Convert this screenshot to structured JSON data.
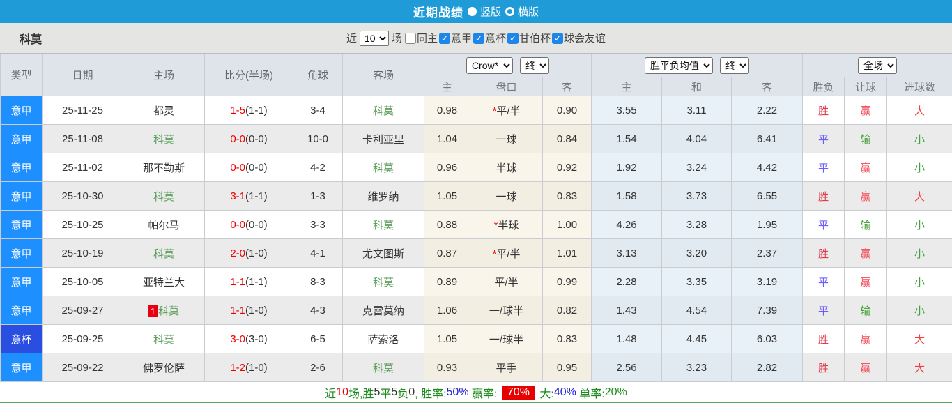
{
  "titlebar": {
    "title": "近期战绩",
    "radio_vertical_label": "竖版",
    "radio_horizontal_label": "横版",
    "selected": "竖版"
  },
  "filterbar": {
    "team": "科莫",
    "recent_label": "近",
    "recent_value": "10",
    "matches_label": "场",
    "checkboxes": [
      {
        "label": "同主",
        "checked": false
      },
      {
        "label": "意甲",
        "checked": true
      },
      {
        "label": "意杯",
        "checked": true
      },
      {
        "label": "甘伯杯",
        "checked": true
      },
      {
        "label": "球会友谊",
        "checked": true
      }
    ]
  },
  "table": {
    "left_headers": [
      "类型",
      "日期",
      "主场",
      "比分(半场)",
      "角球",
      "客场"
    ],
    "group_selects": {
      "odds_company": "Crow*",
      "odds_time": "终",
      "avg_name": "胜平负均值",
      "avg_time": "终",
      "scope": "全场"
    },
    "sub_headers": [
      "主",
      "盘口",
      "客",
      "主",
      "和",
      "客",
      "胜负",
      "让球",
      "进球数"
    ],
    "rows": [
      {
        "type": "意甲",
        "type_kind": "league",
        "date": "25-11-25",
        "home": "都灵",
        "home_badge": "",
        "home_is_team": false,
        "score_ft": "1-5",
        "score_ht": "(1-1)",
        "corners": "3-4",
        "away": "科莫",
        "away_is_team": true,
        "odds_home": "0.98",
        "handicap_star": true,
        "handicap": "平/半",
        "odds_away": "0.90",
        "avg_home": "3.55",
        "avg_draw": "3.11",
        "avg_away": "2.22",
        "wdl": "胜",
        "handicap_result": "赢",
        "goals": "大"
      },
      {
        "type": "意甲",
        "type_kind": "league",
        "date": "25-11-08",
        "home": "科莫",
        "home_badge": "",
        "home_is_team": true,
        "score_ft": "0-0",
        "score_ht": "(0-0)",
        "corners": "10-0",
        "away": "卡利亚里",
        "away_is_team": false,
        "odds_home": "1.04",
        "handicap_star": false,
        "handicap": "一球",
        "odds_away": "0.84",
        "avg_home": "1.54",
        "avg_draw": "4.04",
        "avg_away": "6.41",
        "wdl": "平",
        "handicap_result": "输",
        "goals": "小"
      },
      {
        "type": "意甲",
        "type_kind": "league",
        "date": "25-11-02",
        "home": "那不勒斯",
        "home_badge": "",
        "home_is_team": false,
        "score_ft": "0-0",
        "score_ht": "(0-0)",
        "corners": "4-2",
        "away": "科莫",
        "away_is_team": true,
        "odds_home": "0.96",
        "handicap_star": false,
        "handicap": "半球",
        "odds_away": "0.92",
        "avg_home": "1.92",
        "avg_draw": "3.24",
        "avg_away": "4.42",
        "wdl": "平",
        "handicap_result": "赢",
        "goals": "小"
      },
      {
        "type": "意甲",
        "type_kind": "league",
        "date": "25-10-30",
        "home": "科莫",
        "home_badge": "",
        "home_is_team": true,
        "score_ft": "3-1",
        "score_ht": "(1-1)",
        "corners": "1-3",
        "away": "维罗纳",
        "away_is_team": false,
        "odds_home": "1.05",
        "handicap_star": false,
        "handicap": "一球",
        "odds_away": "0.83",
        "avg_home": "1.58",
        "avg_draw": "3.73",
        "avg_away": "6.55",
        "wdl": "胜",
        "handicap_result": "赢",
        "goals": "大"
      },
      {
        "type": "意甲",
        "type_kind": "league",
        "date": "25-10-25",
        "home": "帕尔马",
        "home_badge": "",
        "home_is_team": false,
        "score_ft": "0-0",
        "score_ht": "(0-0)",
        "corners": "3-3",
        "away": "科莫",
        "away_is_team": true,
        "odds_home": "0.88",
        "handicap_star": true,
        "handicap": "半球",
        "odds_away": "1.00",
        "avg_home": "4.26",
        "avg_draw": "3.28",
        "avg_away": "1.95",
        "wdl": "平",
        "handicap_result": "输",
        "goals": "小"
      },
      {
        "type": "意甲",
        "type_kind": "league",
        "date": "25-10-19",
        "home": "科莫",
        "home_badge": "",
        "home_is_team": true,
        "score_ft": "2-0",
        "score_ht": "(1-0)",
        "corners": "4-1",
        "away": "尤文图斯",
        "away_is_team": false,
        "odds_home": "0.87",
        "handicap_star": true,
        "handicap": "平/半",
        "odds_away": "1.01",
        "avg_home": "3.13",
        "avg_draw": "3.20",
        "avg_away": "2.37",
        "wdl": "胜",
        "handicap_result": "赢",
        "goals": "小"
      },
      {
        "type": "意甲",
        "type_kind": "league",
        "date": "25-10-05",
        "home": "亚特兰大",
        "home_badge": "",
        "home_is_team": false,
        "score_ft": "1-1",
        "score_ht": "(1-1)",
        "corners": "8-3",
        "away": "科莫",
        "away_is_team": true,
        "odds_home": "0.89",
        "handicap_star": false,
        "handicap": "平/半",
        "odds_away": "0.99",
        "avg_home": "2.28",
        "avg_draw": "3.35",
        "avg_away": "3.19",
        "wdl": "平",
        "handicap_result": "赢",
        "goals": "小"
      },
      {
        "type": "意甲",
        "type_kind": "league",
        "date": "25-09-27",
        "home": "科莫",
        "home_badge": "1",
        "home_is_team": true,
        "score_ft": "1-1",
        "score_ht": "(1-0)",
        "corners": "4-3",
        "away": "克雷莫纳",
        "away_is_team": false,
        "odds_home": "1.06",
        "handicap_star": false,
        "handicap": "一/球半",
        "odds_away": "0.82",
        "avg_home": "1.43",
        "avg_draw": "4.54",
        "avg_away": "7.39",
        "wdl": "平",
        "handicap_result": "输",
        "goals": "小"
      },
      {
        "type": "意杯",
        "type_kind": "cup",
        "date": "25-09-25",
        "home": "科莫",
        "home_badge": "",
        "home_is_team": true,
        "score_ft": "3-0",
        "score_ht": "(3-0)",
        "corners": "6-5",
        "away": "萨索洛",
        "away_is_team": false,
        "odds_home": "1.05",
        "handicap_star": false,
        "handicap": "一/球半",
        "odds_away": "0.83",
        "avg_home": "1.48",
        "avg_draw": "4.45",
        "avg_away": "6.03",
        "wdl": "胜",
        "handicap_result": "赢",
        "goals": "大"
      },
      {
        "type": "意甲",
        "type_kind": "league",
        "date": "25-09-22",
        "home": "佛罗伦萨",
        "home_badge": "",
        "home_is_team": false,
        "score_ft": "1-2",
        "score_ht": "(1-0)",
        "corners": "2-6",
        "away": "科莫",
        "away_is_team": true,
        "odds_home": "0.93",
        "handicap_star": false,
        "handicap": "平手",
        "odds_away": "0.95",
        "avg_home": "2.56",
        "avg_draw": "3.23",
        "avg_away": "2.82",
        "wdl": "胜",
        "handicap_result": "赢",
        "goals": "大"
      }
    ]
  },
  "footer": {
    "segments": [
      {
        "text": "近",
        "style": "green"
      },
      {
        "text": "10",
        "style": "red"
      },
      {
        "text": "场,胜",
        "style": "green"
      },
      {
        "text": "5",
        "style": "dark"
      },
      {
        "text": "平",
        "style": "green"
      },
      {
        "text": "5",
        "style": "dark"
      },
      {
        "text": "负",
        "style": "green"
      },
      {
        "text": "0",
        "style": "dark"
      },
      {
        "text": ", 胜率:",
        "style": "green"
      },
      {
        "text": "50%",
        "style": "blue"
      },
      {
        "text": " 赢率: ",
        "style": "green"
      },
      {
        "text": "70%",
        "style": "red-badge"
      },
      {
        "text": " 大:",
        "style": "green"
      },
      {
        "text": "40%",
        "style": "blue"
      },
      {
        "text": " 单率:",
        "style": "green"
      },
      {
        "text": "20%",
        "style": "green"
      }
    ]
  },
  "colors": {
    "titlebar_bg": "#1f9bd8",
    "filterbar_bg": "#e5e6e4",
    "header_bg": "#dfe4ea",
    "league_cell": "#1e8fff",
    "cup_cell": "#2b4ee2",
    "alt_row": "#ebebeb",
    "odds_col_bg": "#faf5eb",
    "avg_col_bg": "#e9f1f8",
    "team_green": "#5a9e5a",
    "score_red": "#f00000",
    "win_red": "#e03a4a",
    "draw_blue": "#6a5cff",
    "lose_green": "#3a9b2a",
    "summary_badge_red": "#e60000"
  }
}
